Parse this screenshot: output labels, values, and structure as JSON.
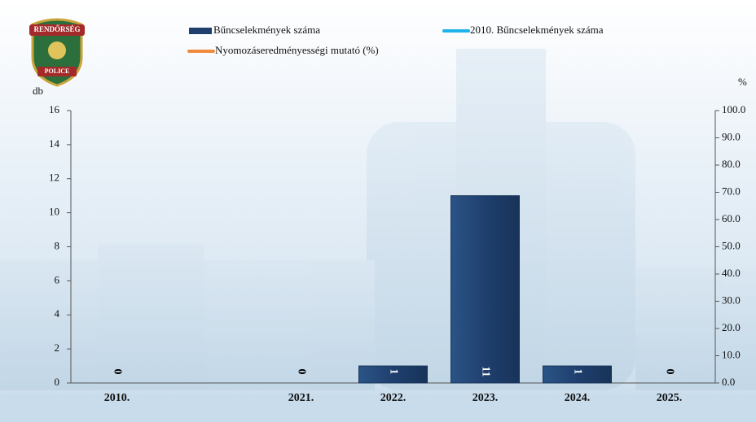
{
  "logo": {
    "top": "RENDŐRSÉG",
    "bottom": "POLICE"
  },
  "chart_data": {
    "type": "bar",
    "y_label": "db",
    "y2_label": "%",
    "categories": [
      "2010.",
      null,
      "2021.",
      "2022.",
      "2023.",
      "2024.",
      "2025."
    ],
    "series": [
      {
        "name": "Bűncselekmények száma",
        "color": "#1f3f6e",
        "values": [
          0,
          null,
          0,
          1,
          11,
          1,
          0
        ]
      },
      {
        "name": "2010. Bűncselekmények száma",
        "color": "#1eb4ea",
        "type": "line",
        "values": [
          null,
          null,
          null,
          null,
          null,
          null,
          null
        ]
      },
      {
        "name": "Nyomozáseredményességi mutató (%)",
        "color": "#f08a3c",
        "type": "line",
        "axis": "y2",
        "values": [
          null,
          null,
          null,
          null,
          null,
          null,
          null
        ]
      }
    ],
    "ylim": [
      0,
      16
    ],
    "yticks": [
      0,
      2,
      4,
      6,
      8,
      10,
      12,
      14,
      16
    ],
    "y2lim": [
      0,
      100
    ],
    "y2ticks": [
      {
        "value": 0,
        "label": "0.0"
      },
      {
        "value": 10,
        "label": "10.0"
      },
      {
        "value": 20,
        "label": "20.0"
      },
      {
        "value": 30,
        "label": "30.0"
      },
      {
        "value": 40,
        "label": "40.0"
      },
      {
        "value": 50,
        "label": "50.0"
      },
      {
        "value": 60,
        "label": "60.0"
      },
      {
        "value": 70,
        "label": "70.0"
      },
      {
        "value": 80,
        "label": "80.0"
      },
      {
        "value": 90,
        "label": "90.0"
      },
      {
        "value": 100,
        "label": "100.0"
      }
    ]
  }
}
